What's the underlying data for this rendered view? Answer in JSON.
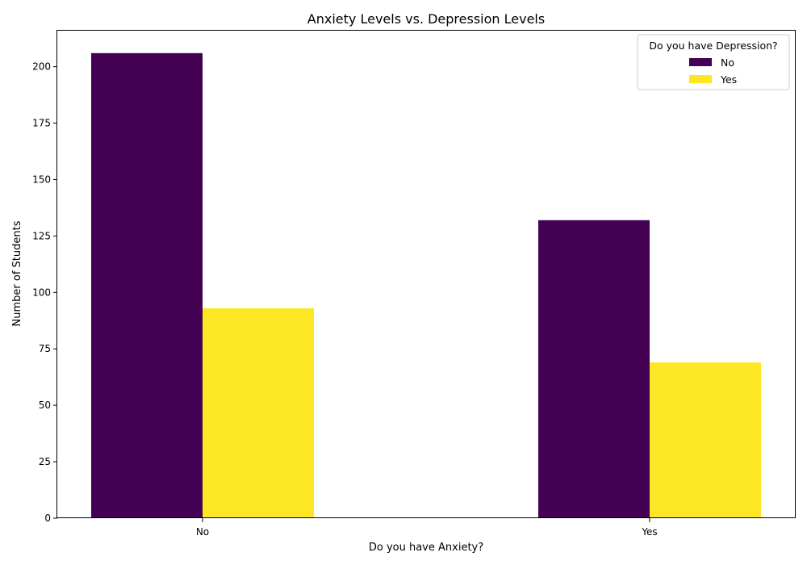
{
  "chart_data": {
    "type": "bar",
    "title": "Anxiety Levels vs. Depression Levels",
    "xlabel": "Do you have Anxiety?",
    "ylabel": "Number of Students",
    "categories": [
      "No",
      "Yes"
    ],
    "series": [
      {
        "name": "No",
        "values": [
          206,
          132
        ],
        "color": "#440154"
      },
      {
        "name": "Yes",
        "values": [
          93,
          69
        ],
        "color": "#fde725"
      }
    ],
    "ylim": [
      0,
      216.3
    ],
    "yticks": [
      0,
      25,
      50,
      75,
      100,
      125,
      150,
      175,
      200
    ],
    "grid": false,
    "legend": {
      "title": "Do you have Depression?",
      "placement": "top-right"
    }
  }
}
